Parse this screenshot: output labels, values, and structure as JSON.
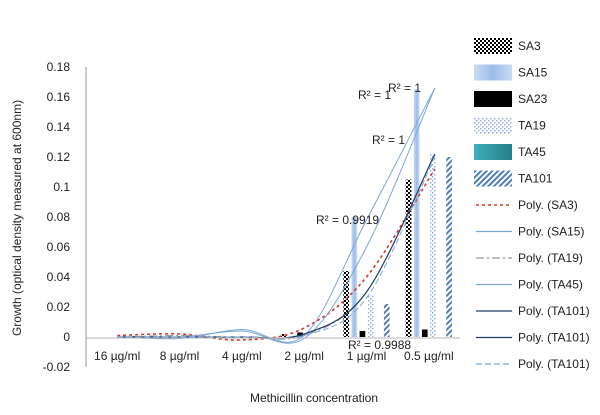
{
  "chart_data": {
    "type": "bar",
    "xlabel": "Methicillin concentration",
    "ylabel": "Growth (optical density measured at 600nm)",
    "ylim": [
      -0.02,
      0.18
    ],
    "yticks": [
      "-0.02",
      "0",
      "0.02",
      "0.04",
      "0.06",
      "0.08",
      "0.1",
      "0.12",
      "0.14",
      "0.16",
      "0.18"
    ],
    "categories": [
      "16 µg/ml",
      "8 µg/ml",
      "4 µg/ml",
      "2 µg/ml",
      "1 µg/ml",
      "0.5 µg/ml"
    ],
    "grid": false,
    "legend_position": "right",
    "series": [
      {
        "name": "SA3",
        "pattern": "checker",
        "color": "#000000",
        "values": [
          0,
          0,
          0,
          0.002,
          0.044,
          0.105
        ]
      },
      {
        "name": "SA15",
        "pattern": "solid",
        "color": "#a9c4ea",
        "values": [
          0,
          0,
          0,
          0,
          0.08,
          0.165
        ]
      },
      {
        "name": "SA23",
        "pattern": "solid",
        "color": "#000000",
        "values": [
          0,
          0,
          0,
          0.003,
          0.004,
          0.005
        ]
      },
      {
        "name": "TA19",
        "pattern": "dots",
        "color": "#8fb1df",
        "values": [
          0,
          0,
          0,
          0,
          0.028,
          0.122
        ]
      },
      {
        "name": "TA45",
        "pattern": "solid",
        "color": "#2e9aa6",
        "values": [
          0,
          0,
          0,
          0,
          0,
          0
        ]
      },
      {
        "name": "TA101",
        "pattern": "diag",
        "color": "#4f7eb8",
        "values": [
          0,
          0,
          0,
          0,
          0.022,
          0.12
        ]
      }
    ],
    "trendlines": [
      {
        "name": "Poly. (SA3)",
        "style": "dotted-red",
        "color": "#d23b2a"
      },
      {
        "name": "Poly. (SA15)",
        "style": "solid",
        "color": "#7aa6dc"
      },
      {
        "name": "Poly. (TA19)",
        "style": "dashdot",
        "color": "#9a9a9a"
      },
      {
        "name": "Poly. (TA45)",
        "style": "solid",
        "color": "#7aa6dc"
      },
      {
        "name": "Poly. (TA101)",
        "style": "solid",
        "color": "#1f3d66"
      },
      {
        "name": "Poly. (TA101)",
        "style": "solid",
        "color": "#1f3d66"
      },
      {
        "name": "Poly. (TA101)",
        "style": "dashed",
        "color": "#7aa6dc"
      }
    ],
    "annotations": [
      "R² = 1",
      "R² = 1",
      "R² = 1",
      "R² = 0.9919",
      "R² = 0.9988"
    ]
  }
}
